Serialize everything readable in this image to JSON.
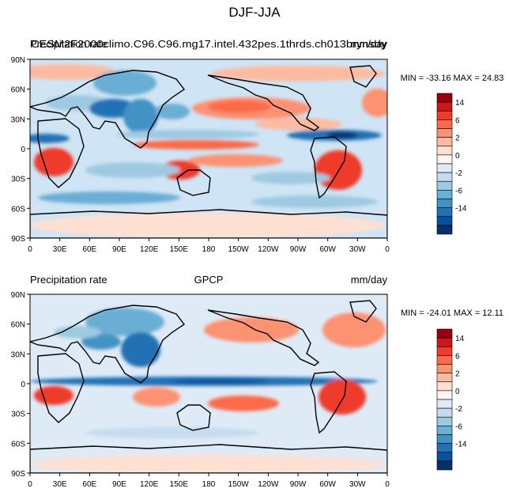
{
  "figure": {
    "title": "DJF-JJA"
  },
  "panels": [
    {
      "left_label": "Precipitation rate",
      "center_label": "CESM2F2000climo.C96.C96.mg17.intel.432pes.1thrds.ch013brynsdy",
      "right_label": "mm/day",
      "stats": "MIN = -33.16 MAX =  24.83"
    },
    {
      "left_label": "Precipitation rate",
      "center_label": "GPCP",
      "right_label": "mm/day",
      "stats": "MIN = -24.01 MAX =  12.11"
    }
  ],
  "axes": {
    "lat_ticks": [
      "90N",
      "60N",
      "30N",
      "0",
      "30S",
      "60S",
      "90S"
    ],
    "lon_ticks": [
      "0",
      "30E",
      "60E",
      "90E",
      "120E",
      "150E",
      "180",
      "150W",
      "120W",
      "90W",
      "60W",
      "30W",
      "0"
    ]
  },
  "colorbar": {
    "labels": [
      "14",
      "6",
      "2",
      "0",
      "-2",
      "-6",
      "-14"
    ],
    "colors": [
      "#99000d",
      "#cb181d",
      "#ef3b2c",
      "#fb6a4a",
      "#fc9272",
      "#fcbba1",
      "#fee0d2",
      "#fff5f0",
      "#deebf7",
      "#c6dbef",
      "#9ecae1",
      "#6baed6",
      "#4292c6",
      "#2171b5",
      "#08519c",
      "#08306b"
    ]
  },
  "colors": {
    "ocean_base": "#cfe4f5",
    "coast": "#000000"
  }
}
